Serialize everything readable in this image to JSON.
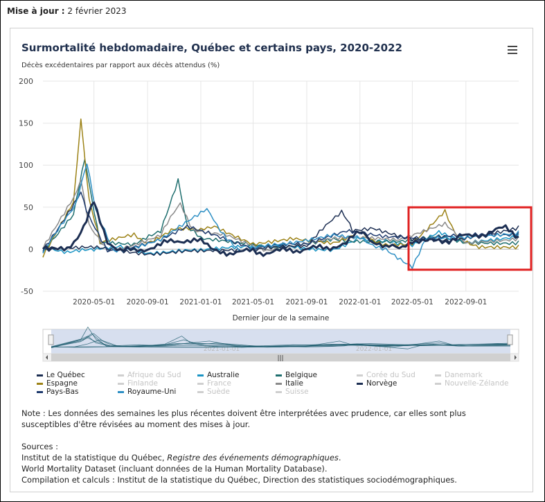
{
  "update": {
    "label": "Mise à jour :",
    "date": "2 février 2023"
  },
  "chart_data": {
    "type": "line",
    "title": "Surmortalité hebdomadaire, Québec et certains pays, 2020-2022",
    "ylabel": "Décès excédentaires par rapport aux décès attendus (%)",
    "xlabel": "Dernier jour de la semaine",
    "ylim": [
      -50,
      200
    ],
    "yticks": [
      "200",
      "150",
      "100",
      "50",
      "0",
      "-50"
    ],
    "yticks_values": [
      200,
      150,
      100,
      50,
      0,
      -50
    ],
    "xticks": [
      "2020-05-01",
      "2020-09-01",
      "2021-01-01",
      "2021-05-01",
      "2021-09-01",
      "2022-01-01",
      "2022-05-01",
      "2022-09-01"
    ],
    "x_range": [
      "2020-01-05",
      "2022-12-31"
    ],
    "navigator_labels": [
      "2021-01-01",
      "2022-01-01"
    ],
    "grid": true,
    "legend_position": "bottom",
    "series": [
      {
        "name": "Le Québec",
        "color": "#1c2e52",
        "visible": true,
        "width": 3,
        "points": [
          [
            "2020-01-05",
            0
          ],
          [
            "2020-02-01",
            -2
          ],
          [
            "2020-03-01",
            -1
          ],
          [
            "2020-04-01",
            22
          ],
          [
            "2020-04-20",
            45
          ],
          [
            "2020-05-01",
            55
          ],
          [
            "2020-05-15",
            30
          ],
          [
            "2020-06-01",
            10
          ],
          [
            "2020-07-01",
            0
          ],
          [
            "2020-08-01",
            -3
          ],
          [
            "2020-09-01",
            2
          ],
          [
            "2020-10-01",
            5
          ],
          [
            "2020-11-01",
            10
          ],
          [
            "2020-12-01",
            12
          ],
          [
            "2021-01-01",
            8
          ],
          [
            "2021-02-01",
            2
          ],
          [
            "2021-03-01",
            -3
          ],
          [
            "2021-04-01",
            -5
          ],
          [
            "2021-05-01",
            -2
          ],
          [
            "2021-06-01",
            -4
          ],
          [
            "2021-07-01",
            -3
          ],
          [
            "2021-08-01",
            0
          ],
          [
            "2021-09-01",
            -1
          ],
          [
            "2021-10-01",
            1
          ],
          [
            "2021-11-01",
            4
          ],
          [
            "2021-12-01",
            6
          ],
          [
            "2022-01-01",
            22
          ],
          [
            "2022-01-15",
            18
          ],
          [
            "2022-02-01",
            8
          ],
          [
            "2022-03-01",
            3
          ],
          [
            "2022-04-01",
            0
          ],
          [
            "2022-05-01",
            12
          ],
          [
            "2022-06-01",
            8
          ],
          [
            "2022-07-01",
            10
          ],
          [
            "2022-08-01",
            12
          ],
          [
            "2022-09-01",
            15
          ],
          [
            "2022-10-01",
            18
          ],
          [
            "2022-11-01",
            20
          ],
          [
            "2022-12-01",
            25
          ],
          [
            "2022-12-31",
            15
          ]
        ]
      },
      {
        "name": "Afrique du Sud",
        "color": "#b8b8b8",
        "visible": false,
        "width": 1.5
      },
      {
        "name": "Australie",
        "color": "#1a94c4",
        "visible": true,
        "width": 1.5,
        "points": [
          [
            "2020-01-05",
            0
          ],
          [
            "2020-03-01",
            -5
          ],
          [
            "2020-05-01",
            -3
          ],
          [
            "2020-07-01",
            5
          ],
          [
            "2020-09-01",
            -2
          ],
          [
            "2021-01-01",
            -4
          ],
          [
            "2021-05-01",
            3
          ],
          [
            "2021-09-01",
            -1
          ],
          [
            "2021-11-01",
            2
          ],
          [
            "2022-01-01",
            15
          ],
          [
            "2022-03-01",
            10
          ],
          [
            "2022-05-01",
            8
          ],
          [
            "2022-07-01",
            20
          ],
          [
            "2022-09-01",
            5
          ],
          [
            "2022-12-31",
            18
          ]
        ]
      },
      {
        "name": "Belgique",
        "color": "#1e6e6e",
        "visible": true,
        "width": 1.5,
        "points": [
          [
            "2020-01-05",
            -5
          ],
          [
            "2020-03-15",
            40
          ],
          [
            "2020-04-10",
            105
          ],
          [
            "2020-04-25",
            60
          ],
          [
            "2020-05-15",
            5
          ],
          [
            "2020-08-01",
            3
          ],
          [
            "2020-10-01",
            20
          ],
          [
            "2020-11-10",
            85
          ],
          [
            "2020-12-01",
            30
          ],
          [
            "2021-01-01",
            10
          ],
          [
            "2021-04-01",
            5
          ],
          [
            "2021-07-01",
            -2
          ],
          [
            "2021-11-01",
            15
          ],
          [
            "2022-01-01",
            10
          ],
          [
            "2022-04-01",
            8
          ],
          [
            "2022-07-01",
            15
          ],
          [
            "2022-09-01",
            5
          ],
          [
            "2022-12-31",
            10
          ]
        ]
      },
      {
        "name": "Corée du Sud",
        "color": "#c8c8c8",
        "visible": false,
        "width": 1.5
      },
      {
        "name": "Danemark",
        "color": "#c8c8c8",
        "visible": false,
        "width": 1.5
      },
      {
        "name": "Espagne",
        "color": "#9c8216",
        "visible": true,
        "width": 1.5,
        "points": [
          [
            "2020-01-05",
            -10
          ],
          [
            "2020-03-15",
            55
          ],
          [
            "2020-04-01",
            157
          ],
          [
            "2020-04-20",
            60
          ],
          [
            "2020-05-15",
            5
          ],
          [
            "2020-08-01",
            15
          ],
          [
            "2020-09-01",
            10
          ],
          [
            "2020-11-01",
            25
          ],
          [
            "2021-01-01",
            20
          ],
          [
            "2021-02-01",
            30
          ],
          [
            "2021-05-01",
            5
          ],
          [
            "2021-08-01",
            15
          ],
          [
            "2021-11-01",
            10
          ],
          [
            "2022-01-01",
            22
          ],
          [
            "2022-03-01",
            5
          ],
          [
            "2022-05-01",
            10
          ],
          [
            "2022-07-15",
            45
          ],
          [
            "2022-08-15",
            15
          ],
          [
            "2022-10-01",
            5
          ],
          [
            "2022-12-31",
            5
          ]
        ]
      },
      {
        "name": "Finlande",
        "color": "#c8c8c8",
        "visible": false,
        "width": 1.5
      },
      {
        "name": "France",
        "color": "#c8c8c8",
        "visible": false,
        "width": 1.5
      },
      {
        "name": "Italie",
        "color": "#8a8a8a",
        "visible": true,
        "width": 1.5,
        "points": [
          [
            "2020-01-05",
            0
          ],
          [
            "2020-03-15",
            60
          ],
          [
            "2020-04-01",
            85
          ],
          [
            "2020-04-20",
            30
          ],
          [
            "2020-06-01",
            0
          ],
          [
            "2020-10-01",
            15
          ],
          [
            "2020-11-15",
            55
          ],
          [
            "2020-12-15",
            25
          ],
          [
            "2021-03-01",
            20
          ],
          [
            "2021-06-01",
            0
          ],
          [
            "2021-09-01",
            5
          ],
          [
            "2022-01-01",
            15
          ],
          [
            "2022-04-01",
            10
          ],
          [
            "2022-07-15",
            30
          ],
          [
            "2022-09-01",
            5
          ],
          [
            "2022-12-31",
            15
          ]
        ]
      },
      {
        "name": "Norvège",
        "color": "#1c2e52",
        "visible": true,
        "width": 1.5,
        "points": [
          [
            "2020-01-05",
            -3
          ],
          [
            "2020-05-01",
            0
          ],
          [
            "2020-09-01",
            -3
          ],
          [
            "2021-01-01",
            -5
          ],
          [
            "2021-05-01",
            -2
          ],
          [
            "2021-09-01",
            2
          ],
          [
            "2021-11-20",
            45
          ],
          [
            "2021-12-15",
            20
          ],
          [
            "2022-02-01",
            25
          ],
          [
            "2022-05-01",
            15
          ],
          [
            "2022-08-01",
            12
          ],
          [
            "2022-12-31",
            28
          ]
        ]
      },
      {
        "name": "Nouvelle-Zélande",
        "color": "#c8c8c8",
        "visible": false,
        "width": 1.5
      },
      {
        "name": "Pays-Bas",
        "color": "#1e3a6e",
        "visible": true,
        "width": 1.5,
        "points": [
          [
            "2020-01-05",
            -3
          ],
          [
            "2020-04-01",
            70
          ],
          [
            "2020-04-20",
            40
          ],
          [
            "2020-06-01",
            0
          ],
          [
            "2020-10-01",
            10
          ],
          [
            "2020-12-01",
            30
          ],
          [
            "2021-02-01",
            20
          ],
          [
            "2021-05-01",
            0
          ],
          [
            "2021-09-01",
            5
          ],
          [
            "2021-12-01",
            20
          ],
          [
            "2022-03-01",
            15
          ],
          [
            "2022-06-01",
            10
          ],
          [
            "2022-09-01",
            15
          ],
          [
            "2022-12-31",
            20
          ]
        ]
      },
      {
        "name": "Royaume-Uni",
        "color": "#2d8fc4",
        "visible": true,
        "width": 1.5,
        "points": [
          [
            "2020-01-05",
            -5
          ],
          [
            "2020-03-20",
            50
          ],
          [
            "2020-04-15",
            105
          ],
          [
            "2020-05-05",
            50
          ],
          [
            "2020-06-15",
            0
          ],
          [
            "2020-10-01",
            10
          ],
          [
            "2021-01-15",
            45
          ],
          [
            "2021-02-15",
            25
          ],
          [
            "2021-04-01",
            -5
          ],
          [
            "2021-08-01",
            10
          ],
          [
            "2021-11-01",
            20
          ],
          [
            "2022-01-01",
            15
          ],
          [
            "2022-03-01",
            0
          ],
          [
            "2022-05-01",
            -18
          ],
          [
            "2022-06-01",
            10
          ],
          [
            "2022-08-01",
            15
          ],
          [
            "2022-12-31",
            22
          ]
        ]
      },
      {
        "name": "Suède",
        "color": "#c8c8c8",
        "visible": false,
        "width": 1.5
      },
      {
        "name": "Suisse",
        "color": "#c8c8c8",
        "visible": false,
        "width": 1.5
      }
    ]
  },
  "legend_items": [
    {
      "label": "Le Québec",
      "color": "#1c2e52",
      "visible": true
    },
    {
      "label": "Afrique du Sud",
      "color": "#b8b8b8",
      "visible": false
    },
    {
      "label": "Australie",
      "color": "#1a94c4",
      "visible": true
    },
    {
      "label": "Belgique",
      "color": "#1e6e6e",
      "visible": true
    },
    {
      "label": "Corée du Sud",
      "color": "#c8c8c8",
      "visible": false
    },
    {
      "label": "Danemark",
      "color": "#c8c8c8",
      "visible": false
    },
    {
      "label": "Espagne",
      "color": "#9c8216",
      "visible": true
    },
    {
      "label": "Finlande",
      "color": "#c8c8c8",
      "visible": false
    },
    {
      "label": "France",
      "color": "#c8c8c8",
      "visible": false
    },
    {
      "label": "Italie",
      "color": "#8a8a8a",
      "visible": true
    },
    {
      "label": "Norvège",
      "color": "#1c2e52",
      "visible": true
    },
    {
      "label": "Nouvelle-Zélande",
      "color": "#c8c8c8",
      "visible": false
    },
    {
      "label": "Pays-Bas",
      "color": "#1e3a6e",
      "visible": true
    },
    {
      "label": "Royaume-Uni",
      "color": "#2d8fc4",
      "visible": true
    },
    {
      "label": "Suède",
      "color": "#c8c8c8",
      "visible": false
    },
    {
      "label": "Suisse",
      "color": "#c8c8c8",
      "visible": false
    }
  ],
  "highlight_box_color": "#e02020",
  "note": "Note : Les données des semaines les plus récentes doivent être interprétées avec prudence, car elles sont plus susceptibles d'être révisées au moment des mises à jour.",
  "sources": {
    "heading": "Sources :",
    "line1_prefix": "Institut de la statistique du Québec, ",
    "line1_italic": "Registre des événements démographiques",
    "line1_suffix": ".",
    "line2": "World Mortality Dataset (incluant données de la Human Mortality Database).",
    "line3": "Compilation et calculs : Institut de la statistique du Québec, Direction des statistiques sociodémographiques."
  }
}
